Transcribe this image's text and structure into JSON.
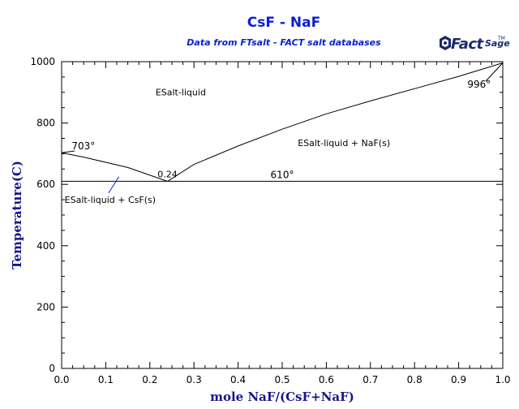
{
  "chart_data": {
    "type": "line",
    "title": "CsF - NaF",
    "subtitle": "Data from FTsalt - FACT salt databases",
    "logo": "FactSage",
    "xlabel": "mole NaF/(CsF+NaF)",
    "ylabel": "Temperature(C)",
    "xlim": [
      0,
      1
    ],
    "ylim": [
      0,
      1000
    ],
    "x_ticks": [
      "0.0",
      "0.1",
      "0.2",
      "0.3",
      "0.4",
      "0.5",
      "0.6",
      "0.7",
      "0.8",
      "0.9",
      "1.0"
    ],
    "y_ticks": [
      "0",
      "200",
      "400",
      "600",
      "800",
      "1000"
    ],
    "grid": false,
    "colors": {
      "title": "#0a1fd6",
      "axis_title": "#17178a",
      "lines": "#000000",
      "leader_line": "#0a1fd6"
    },
    "series": [
      {
        "values": [
          [
            0.0,
            703
          ],
          [
            0.05,
            689
          ],
          [
            0.1,
            672
          ],
          [
            0.15,
            655
          ],
          [
            0.2,
            630
          ],
          [
            0.24,
            610
          ]
        ]
      },
      {
        "values": [
          [
            0.24,
            610
          ],
          [
            0.3,
            665
          ],
          [
            0.4,
            725
          ],
          [
            0.5,
            780
          ],
          [
            0.6,
            830
          ],
          [
            0.7,
            872
          ],
          [
            0.8,
            912
          ],
          [
            0.9,
            952
          ],
          [
            1.0,
            996
          ]
        ]
      },
      {
        "values": [
          [
            0.0,
            610
          ],
          [
            1.0,
            610
          ]
        ]
      }
    ],
    "region_labels": [
      {
        "text": "ESalt-liquid",
        "x": 0.27,
        "y": 890
      },
      {
        "text": "ESalt-liquid + NaF(s)",
        "x": 0.64,
        "y": 725
      },
      {
        "text": "ESalt-liquid + CsF(s)",
        "x": 0.11,
        "y": 540,
        "color": "#0a1fd6",
        "leader_to": [
          0.13,
          625
        ]
      }
    ],
    "annotations": [
      {
        "text": "703°",
        "x": 0.0,
        "y": 703,
        "leader_to": [
          0.03,
          725
        ]
      },
      {
        "text": "0.24",
        "x": 0.24,
        "y": 610
      },
      {
        "text": "610°",
        "x": 0.5,
        "y": 610
      },
      {
        "text": "996°",
        "x": 1.0,
        "y": 996,
        "leader_to": [
          0.95,
          920
        ]
      }
    ]
  }
}
